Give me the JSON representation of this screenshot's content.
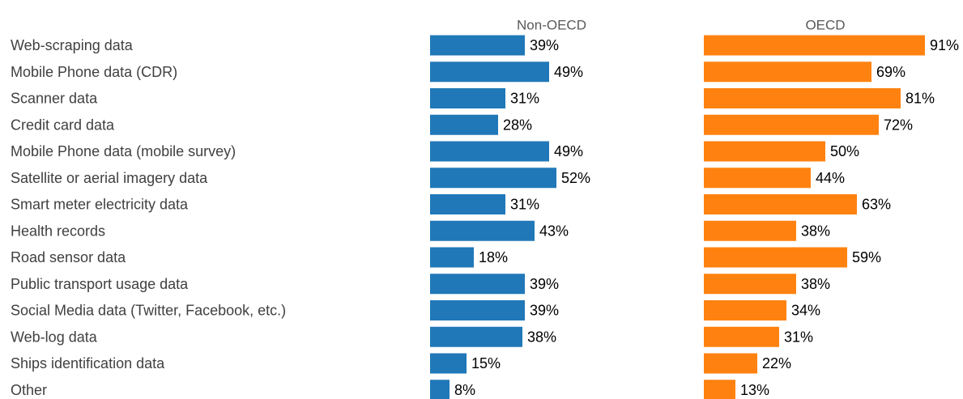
{
  "chart_data": {
    "type": "bar",
    "orientation": "horizontal",
    "categories": [
      "Web-scraping data",
      "Mobile Phone data (CDR)",
      "Scanner data",
      "Credit card data",
      "Mobile Phone data (mobile survey)",
      "Satellite or aerial imagery data",
      "Smart meter electricity data",
      "Health records",
      "Road sensor data",
      "Public transport usage data",
      "Social Media data (Twitter, Facebook, etc.)",
      "Web-log data",
      "Ships identification data",
      "Other"
    ],
    "series": [
      {
        "name": "Non-OECD",
        "color": "#2078b8",
        "values": [
          39,
          49,
          31,
          28,
          49,
          52,
          31,
          43,
          18,
          39,
          39,
          38,
          15,
          8
        ]
      },
      {
        "name": "OECD",
        "color": "#ff8210",
        "values": [
          91,
          69,
          81,
          72,
          50,
          44,
          63,
          38,
          59,
          38,
          34,
          31,
          22,
          13
        ]
      }
    ],
    "value_suffix": "%",
    "xlim": [
      0,
      100
    ],
    "grid": false,
    "legend": "none",
    "layout": "side-by-side panels"
  }
}
